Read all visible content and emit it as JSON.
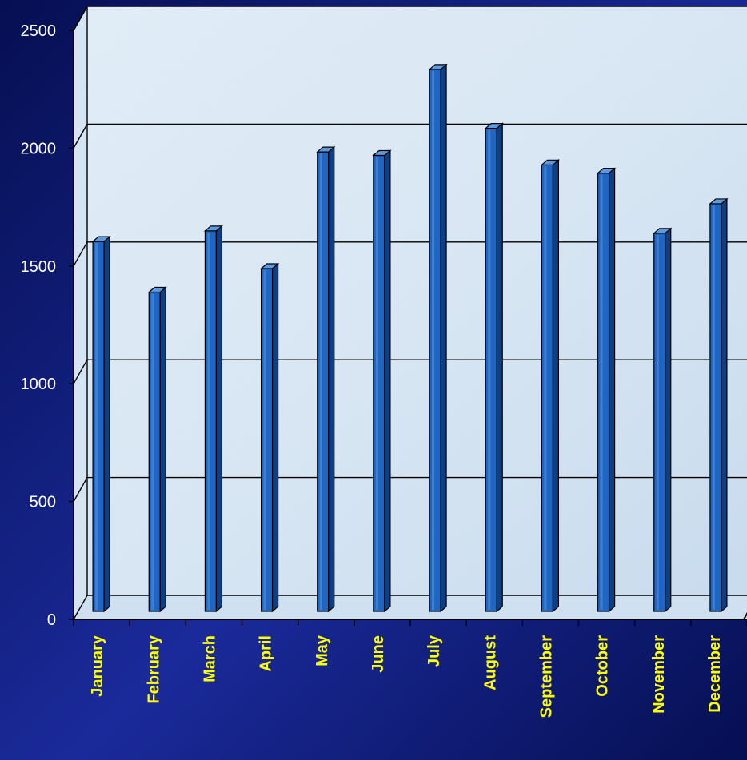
{
  "colors": {
    "background_dark": "#060f52",
    "background_mid": "#1a2a9a",
    "plot_area": "#dce9f5",
    "bar_front": "#1f66c4",
    "bar_side": "#0d3f86",
    "bar_top": "#5d9ae0",
    "tick_label": "#ffffff",
    "category_label": "#ffff00",
    "grid": "#000000"
  },
  "chart_data": {
    "type": "bar",
    "style": "3d-cylinder-columns",
    "title": "",
    "xlabel": "",
    "ylabel": "",
    "categories": [
      "January",
      "February",
      "March",
      "April",
      "May",
      "June",
      "July",
      "August",
      "September",
      "October",
      "November",
      "December"
    ],
    "values": [
      1560,
      1345,
      1605,
      1445,
      1940,
      1925,
      2290,
      2040,
      1885,
      1850,
      1595,
      1720
    ],
    "ylim": [
      0,
      2500
    ],
    "yticks": [
      "0",
      "500",
      "1000",
      "1500",
      "2000",
      "2500"
    ],
    "grid": true,
    "legend": "none"
  }
}
